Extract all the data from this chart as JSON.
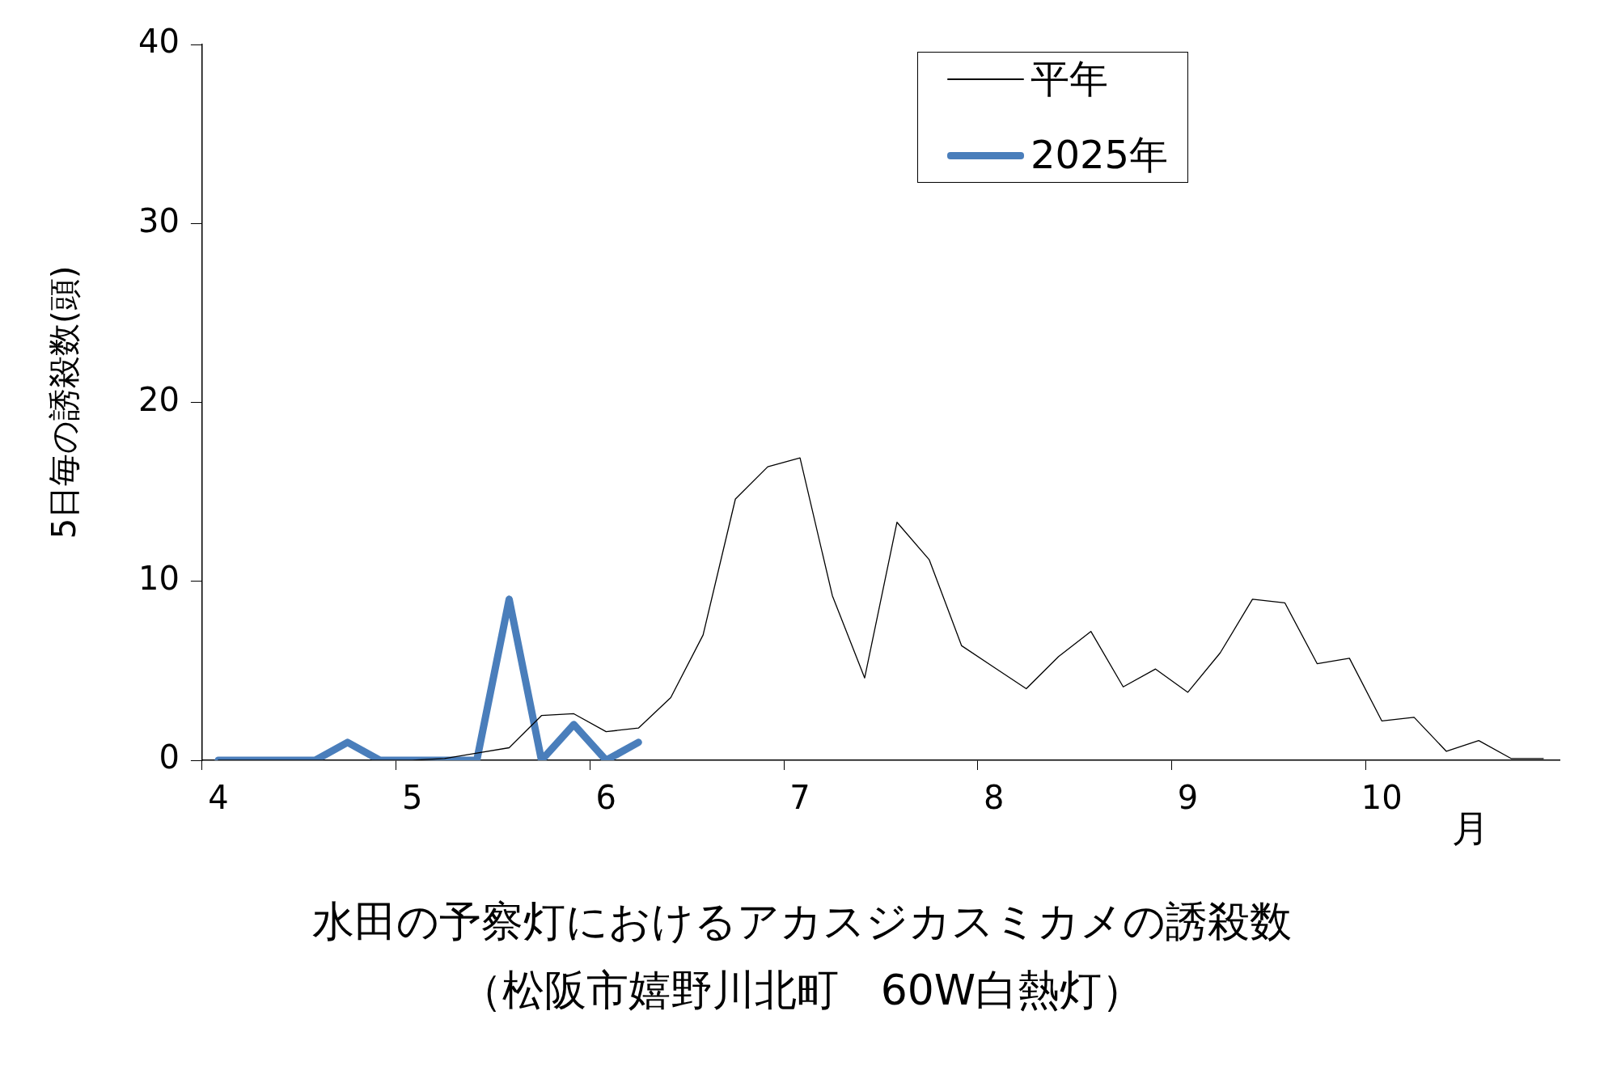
{
  "chart_data": {
    "type": "line",
    "title": "水田の予察灯におけるアカスジカスミカメの誘殺数",
    "subtitle": "（松阪市嬉野川北町　60W白熱灯）",
    "xlabel": "月",
    "ylabel": "5日毎の誘殺数(頭)",
    "categories": [
      "4",
      null,
      null,
      null,
      null,
      null,
      "5",
      null,
      null,
      null,
      null,
      null,
      "6",
      null,
      null,
      null,
      null,
      null,
      "7",
      null,
      null,
      null,
      null,
      null,
      "8",
      null,
      null,
      null,
      null,
      null,
      "9",
      null,
      null,
      null,
      null,
      null,
      "10",
      null,
      null,
      null,
      null,
      null
    ],
    "series": [
      {
        "name": "平年",
        "color": "#000000",
        "values": [
          0,
          0,
          0,
          0,
          0,
          0,
          0,
          0.1,
          0.4,
          0.7,
          2.5,
          2.6,
          1.6,
          1.8,
          3.5,
          7.0,
          14.6,
          16.4,
          16.9,
          9.2,
          4.6,
          13.3,
          11.2,
          6.4,
          5.2,
          4.0,
          5.8,
          7.2,
          4.1,
          5.1,
          3.8,
          6.0,
          9.0,
          8.8,
          5.4,
          5.7,
          2.2,
          2.4,
          0.5,
          1.1,
          0.1,
          0.1
        ]
      },
      {
        "name": "2025年",
        "color": "#4a7ebb",
        "values": [
          0,
          0,
          0,
          0,
          1,
          0,
          0,
          0,
          0,
          9,
          0,
          2,
          0,
          1,
          null,
          null,
          null,
          null,
          null,
          null,
          null,
          null,
          null,
          null,
          null,
          null,
          null,
          null,
          null,
          null,
          null,
          null,
          null,
          null,
          null,
          null,
          null,
          null,
          null,
          null,
          null,
          null
        ]
      }
    ],
    "ylim": [
      0,
      40
    ],
    "yticks": [
      0,
      10,
      20,
      30,
      40
    ],
    "grid": false,
    "legend": "top right",
    "marker": "none"
  }
}
